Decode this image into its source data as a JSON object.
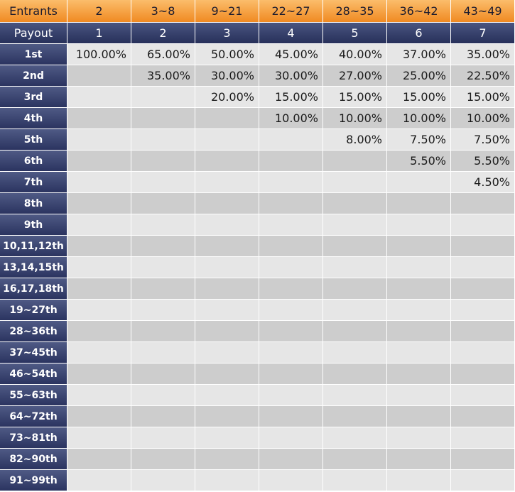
{
  "header": {
    "entrants_label": "Entrants",
    "entrants": [
      "2",
      "3~8",
      "9~21",
      "22~27",
      "28~35",
      "36~42",
      "43~49"
    ],
    "payout_label": "Payout",
    "payouts": [
      "1",
      "2",
      "3",
      "4",
      "5",
      "6",
      "7"
    ]
  },
  "rows": [
    {
      "label": "1st",
      "values": [
        "100.00%",
        "65.00%",
        "50.00%",
        "45.00%",
        "40.00%",
        "37.00%",
        "35.00%"
      ]
    },
    {
      "label": "2nd",
      "values": [
        "",
        "35.00%",
        "30.00%",
        "30.00%",
        "27.00%",
        "25.00%",
        "22.50%"
      ]
    },
    {
      "label": "3rd",
      "values": [
        "",
        "",
        "20.00%",
        "15.00%",
        "15.00%",
        "15.00%",
        "15.00%"
      ]
    },
    {
      "label": "4th",
      "values": [
        "",
        "",
        "",
        "10.00%",
        "10.00%",
        "10.00%",
        "10.00%"
      ]
    },
    {
      "label": "5th",
      "values": [
        "",
        "",
        "",
        "",
        "8.00%",
        "7.50%",
        "7.50%"
      ]
    },
    {
      "label": "6th",
      "values": [
        "",
        "",
        "",
        "",
        "",
        "5.50%",
        "5.50%"
      ]
    },
    {
      "label": "7th",
      "values": [
        "",
        "",
        "",
        "",
        "",
        "",
        "4.50%"
      ]
    },
    {
      "label": "8th",
      "values": [
        "",
        "",
        "",
        "",
        "",
        "",
        ""
      ]
    },
    {
      "label": "9th",
      "values": [
        "",
        "",
        "",
        "",
        "",
        "",
        ""
      ]
    },
    {
      "label": "10,11,12th",
      "values": [
        "",
        "",
        "",
        "",
        "",
        "",
        ""
      ]
    },
    {
      "label": "13,14,15th",
      "values": [
        "",
        "",
        "",
        "",
        "",
        "",
        ""
      ]
    },
    {
      "label": "16,17,18th",
      "values": [
        "",
        "",
        "",
        "",
        "",
        "",
        ""
      ]
    },
    {
      "label": "19~27th",
      "values": [
        "",
        "",
        "",
        "",
        "",
        "",
        ""
      ]
    },
    {
      "label": "28~36th",
      "values": [
        "",
        "",
        "",
        "",
        "",
        "",
        ""
      ]
    },
    {
      "label": "37~45th",
      "values": [
        "",
        "",
        "",
        "",
        "",
        "",
        ""
      ]
    },
    {
      "label": "46~54th",
      "values": [
        "",
        "",
        "",
        "",
        "",
        "",
        ""
      ]
    },
    {
      "label": "55~63th",
      "values": [
        "",
        "",
        "",
        "",
        "",
        "",
        ""
      ]
    },
    {
      "label": "64~72th",
      "values": [
        "",
        "",
        "",
        "",
        "",
        "",
        ""
      ]
    },
    {
      "label": "73~81th",
      "values": [
        "",
        "",
        "",
        "",
        "",
        "",
        ""
      ]
    },
    {
      "label": "82~90th",
      "values": [
        "",
        "",
        "",
        "",
        "",
        "",
        ""
      ]
    },
    {
      "label": "91~99th",
      "values": [
        "",
        "",
        "",
        "",
        "",
        "",
        ""
      ]
    }
  ],
  "colors": {
    "header_orange": "#f08a22",
    "header_navy": "#27305a",
    "row_light": "#e6e6e6",
    "row_dark": "#cdcdcd"
  }
}
